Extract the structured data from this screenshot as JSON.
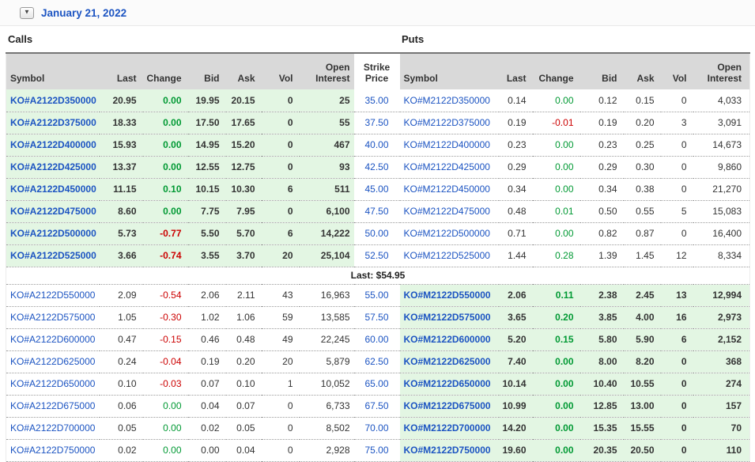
{
  "header": {
    "date": "January 21, 2022"
  },
  "icons": {
    "collapse_caret": "▼"
  },
  "sections": {
    "calls_label": "Calls",
    "puts_label": "Puts"
  },
  "columns": {
    "symbol": "Symbol",
    "last": "Last",
    "change": "Change",
    "bid": "Bid",
    "ask": "Ask",
    "vol": "Vol",
    "open_interest": "Open Interest",
    "strike": "Strike Price"
  },
  "colors": {
    "link_blue": "#1c54c2",
    "positive_green": "#009933",
    "negative_red": "#cc0000",
    "itm_row_green": "#e3f6e3",
    "header_gray": "#d9d9d9"
  },
  "rows": [
    {
      "type": "option",
      "call_itm": true,
      "put_itm": false,
      "call": {
        "symbol": "KO#A2122D350000",
        "last": "20.95",
        "change": "0.00",
        "bid": "19.95",
        "ask": "20.15",
        "vol": "0",
        "open_interest": "25"
      },
      "strike": "35.00",
      "put": {
        "symbol": "KO#M2122D350000",
        "last": "0.14",
        "change": "0.00",
        "bid": "0.12",
        "ask": "0.15",
        "vol": "0",
        "open_interest": "4,033"
      }
    },
    {
      "type": "option",
      "call_itm": true,
      "put_itm": false,
      "call": {
        "symbol": "KO#A2122D375000",
        "last": "18.33",
        "change": "0.00",
        "bid": "17.50",
        "ask": "17.65",
        "vol": "0",
        "open_interest": "55"
      },
      "strike": "37.50",
      "put": {
        "symbol": "KO#M2122D375000",
        "last": "0.19",
        "change": "-0.01",
        "bid": "0.19",
        "ask": "0.20",
        "vol": "3",
        "open_interest": "3,091"
      }
    },
    {
      "type": "option",
      "call_itm": true,
      "put_itm": false,
      "call": {
        "symbol": "KO#A2122D400000",
        "last": "15.93",
        "change": "0.00",
        "bid": "14.95",
        "ask": "15.20",
        "vol": "0",
        "open_interest": "467"
      },
      "strike": "40.00",
      "put": {
        "symbol": "KO#M2122D400000",
        "last": "0.23",
        "change": "0.00",
        "bid": "0.23",
        "ask": "0.25",
        "vol": "0",
        "open_interest": "14,673"
      }
    },
    {
      "type": "option",
      "call_itm": true,
      "put_itm": false,
      "call": {
        "symbol": "KO#A2122D425000",
        "last": "13.37",
        "change": "0.00",
        "bid": "12.55",
        "ask": "12.75",
        "vol": "0",
        "open_interest": "93"
      },
      "strike": "42.50",
      "put": {
        "symbol": "KO#M2122D425000",
        "last": "0.29",
        "change": "0.00",
        "bid": "0.29",
        "ask": "0.30",
        "vol": "0",
        "open_interest": "9,860"
      }
    },
    {
      "type": "option",
      "call_itm": true,
      "put_itm": false,
      "call": {
        "symbol": "KO#A2122D450000",
        "last": "11.15",
        "change": "0.10",
        "bid": "10.15",
        "ask": "10.30",
        "vol": "6",
        "open_interest": "511"
      },
      "strike": "45.00",
      "put": {
        "symbol": "KO#M2122D450000",
        "last": "0.34",
        "change": "0.00",
        "bid": "0.34",
        "ask": "0.38",
        "vol": "0",
        "open_interest": "21,270"
      }
    },
    {
      "type": "option",
      "call_itm": true,
      "put_itm": false,
      "call": {
        "symbol": "KO#A2122D475000",
        "last": "8.60",
        "change": "0.00",
        "bid": "7.75",
        "ask": "7.95",
        "vol": "0",
        "open_interest": "6,100"
      },
      "strike": "47.50",
      "put": {
        "symbol": "KO#M2122D475000",
        "last": "0.48",
        "change": "0.01",
        "bid": "0.50",
        "ask": "0.55",
        "vol": "5",
        "open_interest": "15,083"
      }
    },
    {
      "type": "option",
      "call_itm": true,
      "put_itm": false,
      "call": {
        "symbol": "KO#A2122D500000",
        "last": "5.73",
        "change": "-0.77",
        "bid": "5.50",
        "ask": "5.70",
        "vol": "6",
        "open_interest": "14,222"
      },
      "strike": "50.00",
      "put": {
        "symbol": "KO#M2122D500000",
        "last": "0.71",
        "change": "0.00",
        "bid": "0.82",
        "ask": "0.87",
        "vol": "0",
        "open_interest": "16,400"
      }
    },
    {
      "type": "option",
      "call_itm": true,
      "put_itm": false,
      "call": {
        "symbol": "KO#A2122D525000",
        "last": "3.66",
        "change": "-0.74",
        "bid": "3.55",
        "ask": "3.70",
        "vol": "20",
        "open_interest": "25,104"
      },
      "strike": "52.50",
      "put": {
        "symbol": "KO#M2122D525000",
        "last": "1.44",
        "change": "0.28",
        "bid": "1.39",
        "ask": "1.45",
        "vol": "12",
        "open_interest": "8,334"
      }
    },
    {
      "type": "last_price",
      "label": "Last: $54.95"
    },
    {
      "type": "option",
      "call_itm": false,
      "put_itm": true,
      "call": {
        "symbol": "KO#A2122D550000",
        "last": "2.09",
        "change": "-0.54",
        "bid": "2.06",
        "ask": "2.11",
        "vol": "43",
        "open_interest": "16,963"
      },
      "strike": "55.00",
      "put": {
        "symbol": "KO#M2122D550000",
        "last": "2.06",
        "change": "0.11",
        "bid": "2.38",
        "ask": "2.45",
        "vol": "13",
        "open_interest": "12,994"
      }
    },
    {
      "type": "option",
      "call_itm": false,
      "put_itm": true,
      "call": {
        "symbol": "KO#A2122D575000",
        "last": "1.05",
        "change": "-0.30",
        "bid": "1.02",
        "ask": "1.06",
        "vol": "59",
        "open_interest": "13,585"
      },
      "strike": "57.50",
      "put": {
        "symbol": "KO#M2122D575000",
        "last": "3.65",
        "change": "0.20",
        "bid": "3.85",
        "ask": "4.00",
        "vol": "16",
        "open_interest": "2,973"
      }
    },
    {
      "type": "option",
      "call_itm": false,
      "put_itm": true,
      "call": {
        "symbol": "KO#A2122D600000",
        "last": "0.47",
        "change": "-0.15",
        "bid": "0.46",
        "ask": "0.48",
        "vol": "49",
        "open_interest": "22,245"
      },
      "strike": "60.00",
      "put": {
        "symbol": "KO#M2122D600000",
        "last": "5.20",
        "change": "0.15",
        "bid": "5.80",
        "ask": "5.90",
        "vol": "6",
        "open_interest": "2,152"
      }
    },
    {
      "type": "option",
      "call_itm": false,
      "put_itm": true,
      "call": {
        "symbol": "KO#A2122D625000",
        "last": "0.24",
        "change": "-0.04",
        "bid": "0.19",
        "ask": "0.20",
        "vol": "20",
        "open_interest": "5,879"
      },
      "strike": "62.50",
      "put": {
        "symbol": "KO#M2122D625000",
        "last": "7.40",
        "change": "0.00",
        "bid": "8.00",
        "ask": "8.20",
        "vol": "0",
        "open_interest": "368"
      }
    },
    {
      "type": "option",
      "call_itm": false,
      "put_itm": true,
      "call": {
        "symbol": "KO#A2122D650000",
        "last": "0.10",
        "change": "-0.03",
        "bid": "0.07",
        "ask": "0.10",
        "vol": "1",
        "open_interest": "10,052"
      },
      "strike": "65.00",
      "put": {
        "symbol": "KO#M2122D650000",
        "last": "10.14",
        "change": "0.00",
        "bid": "10.40",
        "ask": "10.55",
        "vol": "0",
        "open_interest": "274"
      }
    },
    {
      "type": "option",
      "call_itm": false,
      "put_itm": true,
      "call": {
        "symbol": "KO#A2122D675000",
        "last": "0.06",
        "change": "0.00",
        "bid": "0.04",
        "ask": "0.07",
        "vol": "0",
        "open_interest": "6,733"
      },
      "strike": "67.50",
      "put": {
        "symbol": "KO#M2122D675000",
        "last": "10.99",
        "change": "0.00",
        "bid": "12.85",
        "ask": "13.00",
        "vol": "0",
        "open_interest": "157"
      }
    },
    {
      "type": "option",
      "call_itm": false,
      "put_itm": true,
      "call": {
        "symbol": "KO#A2122D700000",
        "last": "0.05",
        "change": "0.00",
        "bid": "0.02",
        "ask": "0.05",
        "vol": "0",
        "open_interest": "8,502"
      },
      "strike": "70.00",
      "put": {
        "symbol": "KO#M2122D700000",
        "last": "14.20",
        "change": "0.00",
        "bid": "15.35",
        "ask": "15.55",
        "vol": "0",
        "open_interest": "70"
      }
    },
    {
      "type": "option",
      "call_itm": false,
      "put_itm": true,
      "call": {
        "symbol": "KO#A2122D750000",
        "last": "0.02",
        "change": "0.00",
        "bid": "0.00",
        "ask": "0.04",
        "vol": "0",
        "open_interest": "2,928"
      },
      "strike": "75.00",
      "put": {
        "symbol": "KO#M2122D750000",
        "last": "19.60",
        "change": "0.00",
        "bid": "20.35",
        "ask": "20.50",
        "vol": "0",
        "open_interest": "110"
      }
    }
  ]
}
